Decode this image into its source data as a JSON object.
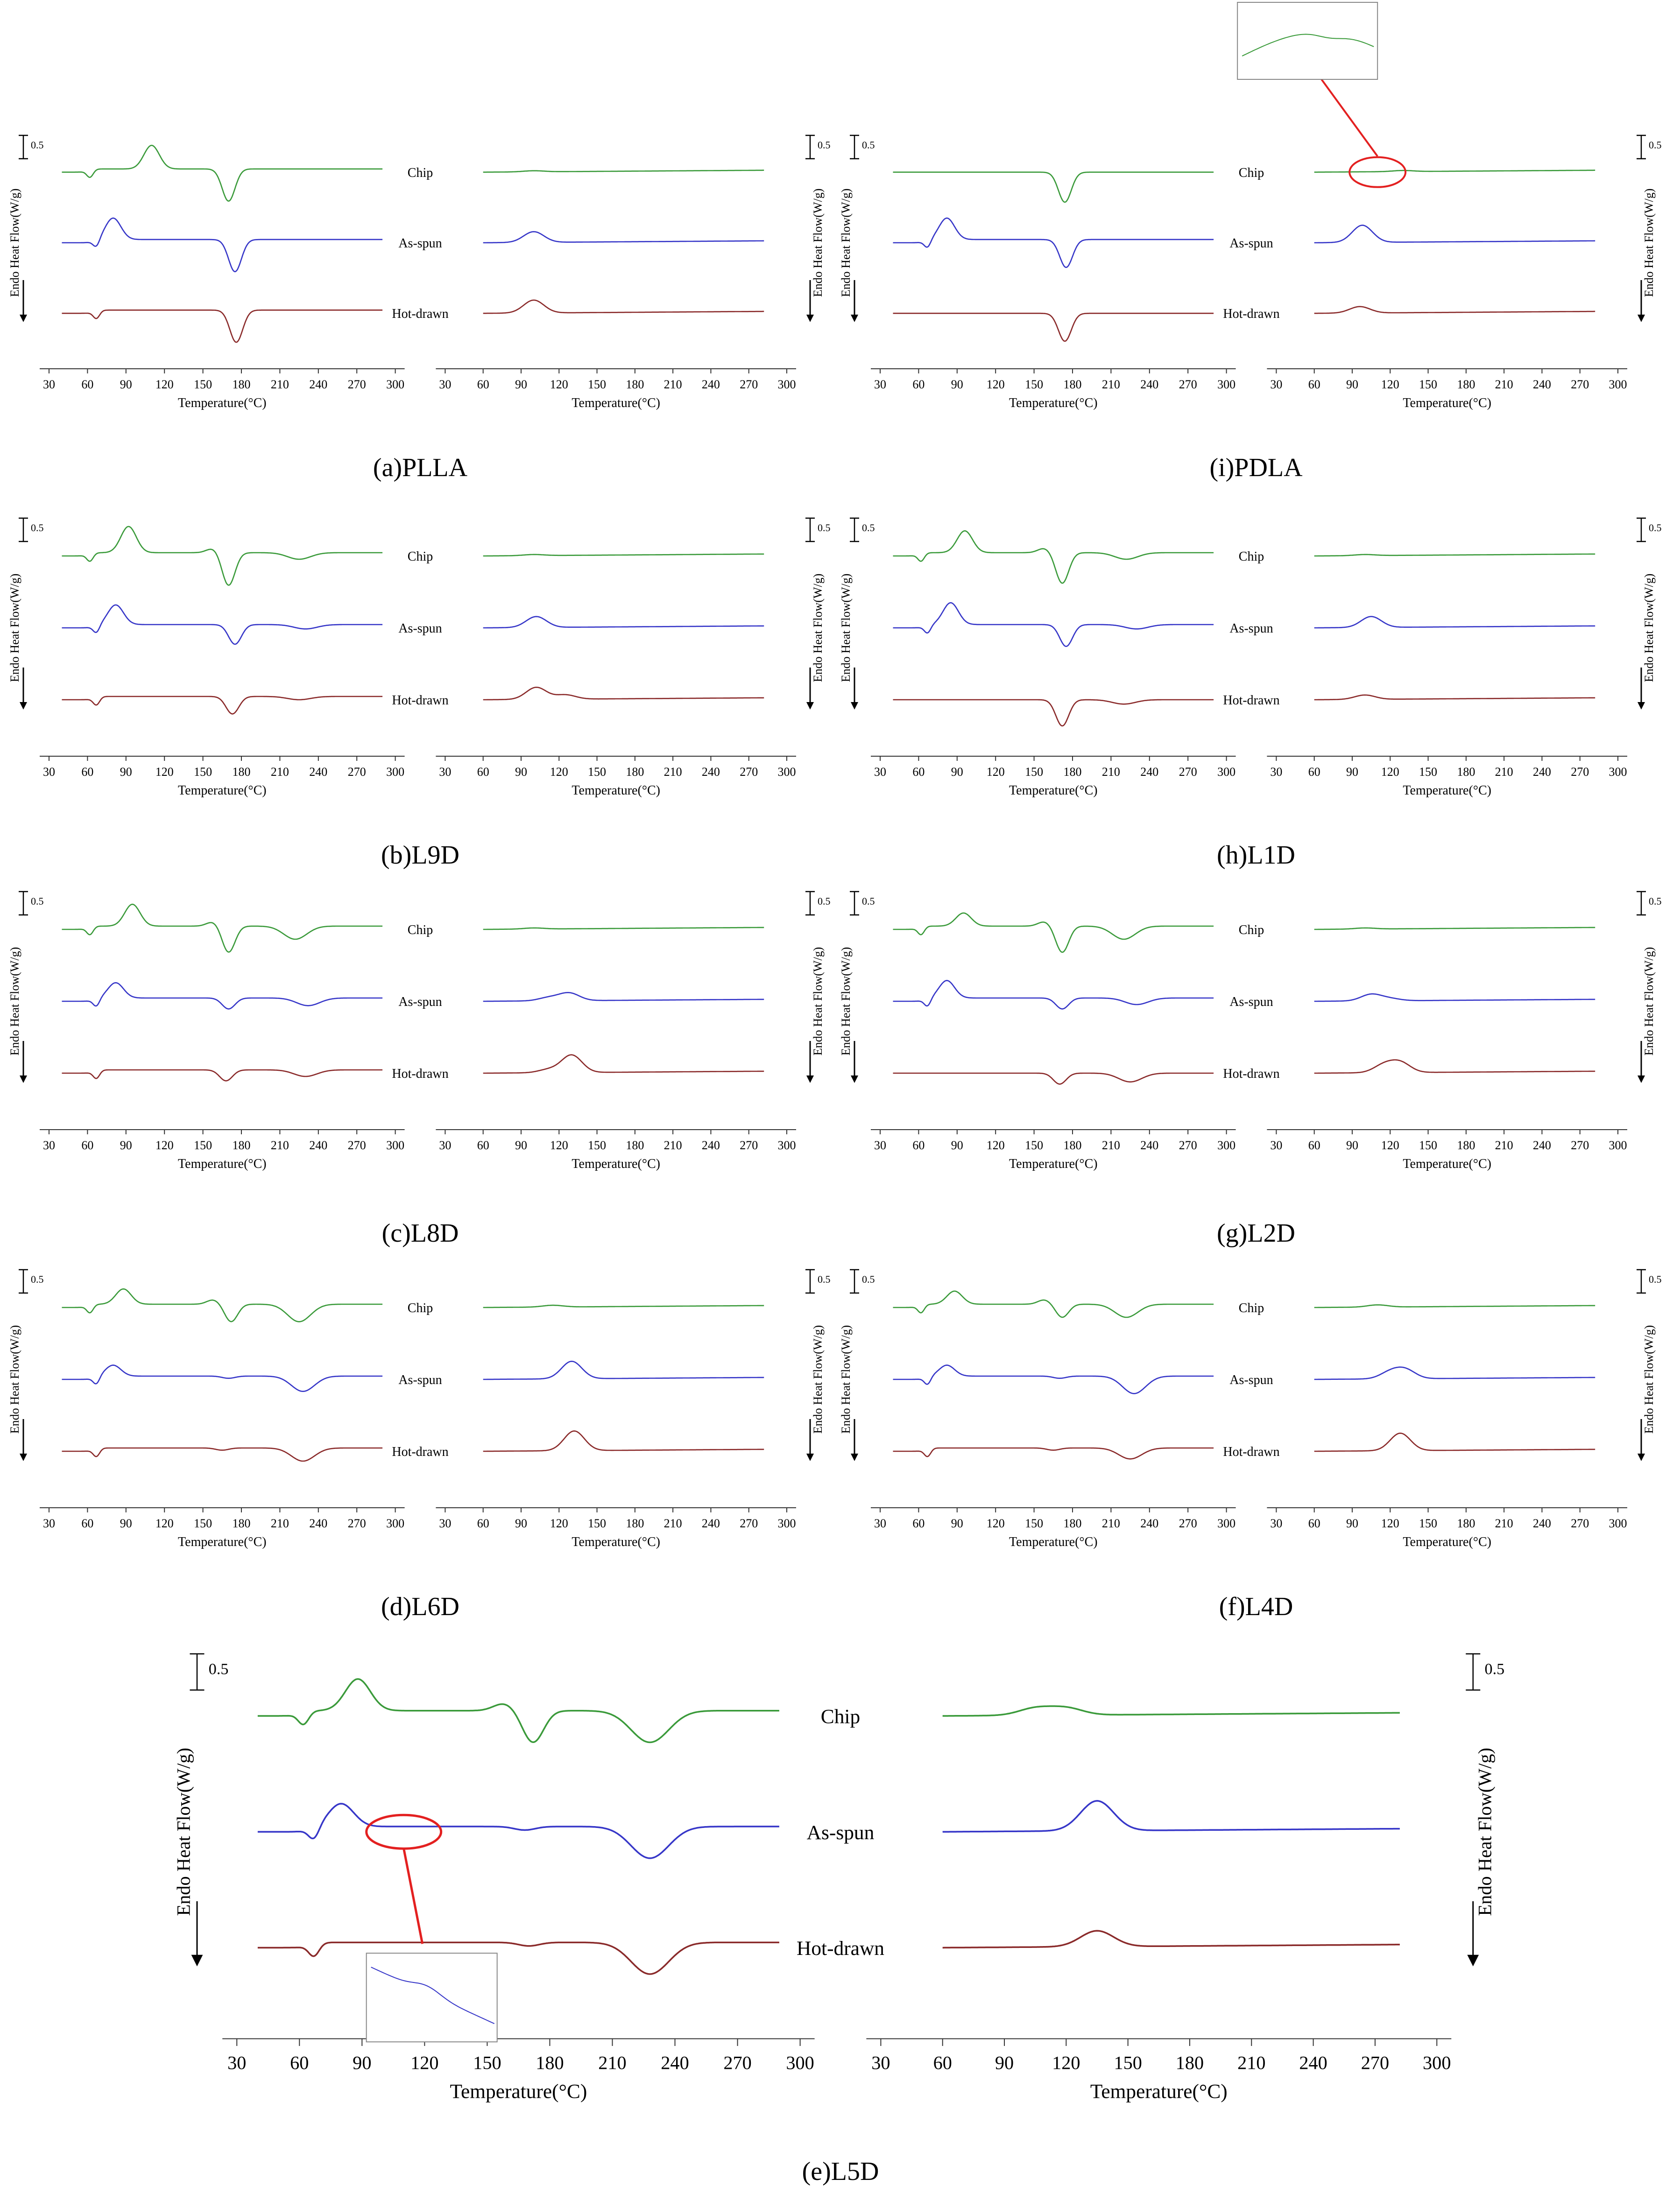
{
  "colors": {
    "Chip": "#3a9a3a",
    "As-spun": "#3636c8",
    "Hot-drawn": "#8a2a2a",
    "callout": "#e32020"
  },
  "common": {
    "ylabel": "Endo Heat Flow(W/g)",
    "xlabel": "Temperature(°C)",
    "scale": "0.5",
    "heating_ticks": [
      "30",
      "60",
      "90",
      "120",
      "150",
      "180",
      "210",
      "240",
      "270",
      "300"
    ],
    "cooling_ticks": [
      "30",
      "60",
      "90",
      "120",
      "150",
      "180",
      "210",
      "240",
      "270",
      "300"
    ]
  },
  "chart_data": [
    {
      "id": "a",
      "caption": "(a)PLLA",
      "type": "line",
      "series": [
        {
          "name": "Chip",
          "heating": {
            "tg": 60,
            "cc": [
              110,
              1.1
            ],
            "m1": null,
            "m2": [
              170,
              -1.5
            ],
            "m3": null
          },
          "cooling": [
            [
              100,
              0.05
            ]
          ]
        },
        {
          "name": "As-spun",
          "heating": {
            "tg": 65,
            "cc": [
              80,
              1.0
            ],
            "m1": null,
            "m2": [
              175,
              -1.5
            ],
            "m3": null
          },
          "cooling": [
            [
              100,
              0.5
            ]
          ]
        },
        {
          "name": "Hot-drawn",
          "heating": {
            "tg": 65,
            "cc": null,
            "m1": null,
            "m2": [
              176,
              -1.5
            ],
            "m3": null
          },
          "cooling": [
            [
              100,
              0.6
            ]
          ]
        }
      ],
      "xlim": [
        30,
        300
      ]
    },
    {
      "id": "i",
      "caption": "(i)PDLA",
      "type": "line",
      "series": [
        {
          "name": "Chip",
          "heating": {
            "tg": null,
            "cc": null,
            "m1": null,
            "m2": [
              174,
              -1.4
            ],
            "m3": null
          },
          "cooling": [
            [
              130,
              0.05
            ]
          ]
        },
        {
          "name": "As-spun",
          "heating": {
            "tg": 65,
            "cc": [
              82,
              1.0
            ],
            "m1": null,
            "m2": [
              175,
              -1.3
            ],
            "m3": null
          },
          "cooling": [
            [
              98,
              0.8
            ]
          ]
        },
        {
          "name": "Hot-drawn",
          "heating": {
            "tg": null,
            "cc": null,
            "m1": null,
            "m2": [
              174,
              -1.3
            ],
            "m3": null
          },
          "cooling": [
            [
              96,
              0.3
            ]
          ]
        }
      ],
      "xlim": [
        30,
        300
      ]
    },
    {
      "id": "b",
      "caption": "(b)L9D",
      "type": "line",
      "series": [
        {
          "name": "Chip",
          "heating": {
            "tg": 60,
            "cc": [
              92,
              1.2
            ],
            "m1": [
              158,
              0.2
            ],
            "m2": [
              170,
              -1.5
            ],
            "m3": [
              225,
              -0.3
            ]
          },
          "cooling": [
            [
              100,
              0.05
            ]
          ]
        },
        {
          "name": "As-spun",
          "heating": {
            "tg": 65,
            "cc": [
              82,
              0.9
            ],
            "m1": null,
            "m2": [
              175,
              -0.9
            ],
            "m3": [
              230,
              -0.2
            ]
          },
          "cooling": [
            [
              102,
              0.5
            ]
          ]
        },
        {
          "name": "Hot-drawn",
          "heating": {
            "tg": 65,
            "cc": null,
            "m1": null,
            "m2": [
              173,
              -0.8
            ],
            "m3": [
              225,
              -0.15
            ]
          },
          "cooling": [
            [
              102,
              0.55
            ],
            [
              125,
              0.2
            ]
          ]
        }
      ],
      "xlim": [
        30,
        300
      ]
    },
    {
      "id": "h",
      "caption": "(h)L1D",
      "type": "line",
      "series": [
        {
          "name": "Chip",
          "heating": {
            "tg": 60,
            "cc": [
              96,
              1.0
            ],
            "m1": [
              158,
              0.2
            ],
            "m2": [
              172,
              -1.4
            ],
            "m3": [
              222,
              -0.3
            ]
          },
          "cooling": [
            [
              100,
              0.05
            ]
          ]
        },
        {
          "name": "As-spun",
          "heating": {
            "tg": 65,
            "cc": [
              85,
              1.0
            ],
            "m1": null,
            "m2": [
              175,
              -1.0
            ],
            "m3": [
              230,
              -0.2
            ]
          },
          "cooling": [
            [
              105,
              0.5
            ]
          ]
        },
        {
          "name": "Hot-drawn",
          "heating": {
            "tg": null,
            "cc": null,
            "m1": null,
            "m2": [
              172,
              -1.2
            ],
            "m3": [
              220,
              -0.2
            ]
          },
          "cooling": [
            [
              100,
              0.2
            ]
          ]
        }
      ],
      "xlim": [
        30,
        300
      ]
    },
    {
      "id": "c",
      "caption": "(c)L8D",
      "type": "line",
      "series": [
        {
          "name": "Chip",
          "heating": {
            "tg": 60,
            "cc": [
              95,
              1.0
            ],
            "m1": [
              158,
              0.2
            ],
            "m2": [
              170,
              -1.2
            ],
            "m3": [
              222,
              -0.6
            ]
          },
          "cooling": [
            [
              100,
              0.05
            ]
          ]
        },
        {
          "name": "As-spun",
          "heating": {
            "tg": 65,
            "cc": [
              82,
              0.7
            ],
            "m1": null,
            "m2": [
              170,
              -0.5
            ],
            "m3": [
              232,
              -0.35
            ]
          },
          "cooling": [
            [
              112,
              0.15
            ],
            [
              128,
              0.35
            ]
          ]
        },
        {
          "name": "Hot-drawn",
          "heating": {
            "tg": 65,
            "cc": null,
            "m1": null,
            "m2": [
              168,
              -0.5
            ],
            "m3": [
              230,
              -0.3
            ]
          },
          "cooling": [
            [
              112,
              0.15
            ],
            [
              130,
              0.8
            ]
          ]
        }
      ],
      "xlim": [
        30,
        300
      ]
    },
    {
      "id": "g",
      "caption": "(g)L2D",
      "type": "line",
      "series": [
        {
          "name": "Chip",
          "heating": {
            "tg": 60,
            "cc": [
              95,
              0.6
            ],
            "m1": [
              158,
              0.2
            ],
            "m2": [
              172,
              -1.2
            ],
            "m3": [
              220,
              -0.6
            ]
          },
          "cooling": [
            [
              100,
              0.05
            ]
          ]
        },
        {
          "name": "As-spun",
          "heating": {
            "tg": 65,
            "cc": [
              82,
              0.8
            ],
            "m1": null,
            "m2": [
              172,
              -0.5
            ],
            "m3": [
              230,
              -0.3
            ]
          },
          "cooling": [
            [
              105,
              0.3
            ],
            [
              120,
              0.1
            ]
          ]
        },
        {
          "name": "Hot-drawn",
          "heating": {
            "tg": null,
            "cc": null,
            "m1": null,
            "m2": [
              170,
              -0.5
            ],
            "m3": [
              225,
              -0.4
            ]
          },
          "cooling": [
            [
              115,
              0.35
            ],
            [
              128,
              0.45
            ]
          ]
        }
      ],
      "xlim": [
        30,
        300
      ]
    },
    {
      "id": "d",
      "caption": "(d)L6D",
      "type": "line",
      "series": [
        {
          "name": "Chip",
          "heating": {
            "tg": 60,
            "cc": [
              88,
              0.7
            ],
            "m1": [
              158,
              0.2
            ],
            "m2": [
              172,
              -0.8
            ],
            "m3": [
              225,
              -0.8
            ]
          },
          "cooling": [
            [
              115,
              0.08
            ]
          ]
        },
        {
          "name": "As-spun",
          "heating": {
            "tg": 65,
            "cc": [
              80,
              0.5
            ],
            "m1": null,
            "m2": [
              170,
              -0.1
            ],
            "m3": [
              228,
              -0.7
            ]
          },
          "cooling": [
            [
              130,
              0.8
            ]
          ]
        },
        {
          "name": "Hot-drawn",
          "heating": {
            "tg": 65,
            "cc": null,
            "m1": null,
            "m2": [
              165,
              -0.1
            ],
            "m3": [
              228,
              -0.6
            ]
          },
          "cooling": [
            [
              132,
              0.9
            ]
          ]
        }
      ],
      "xlim": [
        30,
        300
      ]
    },
    {
      "id": "f",
      "caption": "(f)L4D",
      "type": "line",
      "series": [
        {
          "name": "Chip",
          "heating": {
            "tg": 60,
            "cc": [
              88,
              0.6
            ],
            "m1": [
              158,
              0.2
            ],
            "m2": [
              172,
              -0.6
            ],
            "m3": [
              222,
              -0.6
            ]
          },
          "cooling": [
            [
              110,
              0.1
            ]
          ]
        },
        {
          "name": "As-spun",
          "heating": {
            "tg": 65,
            "cc": [
              82,
              0.5
            ],
            "m1": null,
            "m2": [
              170,
              -0.1
            ],
            "m3": [
              228,
              -0.8
            ]
          },
          "cooling": [
            [
              120,
              0.3
            ],
            [
              132,
              0.4
            ]
          ]
        },
        {
          "name": "Hot-drawn",
          "heating": {
            "tg": 65,
            "cc": null,
            "m1": null,
            "m2": [
              165,
              -0.1
            ],
            "m3": [
              225,
              -0.5
            ]
          },
          "cooling": [
            [
              128,
              0.8
            ]
          ]
        }
      ],
      "xlim": [
        30,
        300
      ]
    },
    {
      "id": "e",
      "caption": "(e)L5D",
      "type": "line",
      "series": [
        {
          "name": "Chip",
          "heating": {
            "tg": 60,
            "cc": [
              88,
              0.9
            ],
            "m1": [
              158,
              0.2
            ],
            "m2": [
              172,
              -0.9
            ],
            "m3": [
              228,
              -0.9
            ]
          },
          "cooling": [
            [
              105,
              0.2
            ],
            [
              120,
              0.2
            ]
          ]
        },
        {
          "name": "As-spun",
          "heating": {
            "tg": 65,
            "cc": [
              80,
              0.65
            ],
            "m1": null,
            "m2": [
              168,
              -0.1
            ],
            "m3": [
              228,
              -0.9
            ]
          },
          "cooling": [
            [
              135,
              0.85
            ]
          ]
        },
        {
          "name": "Hot-drawn",
          "heating": {
            "tg": 65,
            "cc": null,
            "m1": null,
            "m2": [
              170,
              -0.1
            ],
            "m3": [
              228,
              -0.9
            ]
          },
          "cooling": [
            [
              135,
              0.45
            ]
          ]
        }
      ],
      "xlim": [
        30,
        300
      ]
    }
  ]
}
